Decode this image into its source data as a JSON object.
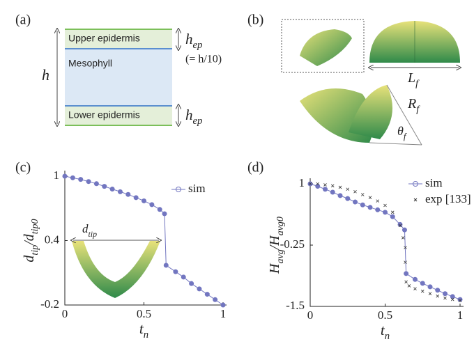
{
  "panel_a": {
    "label": "(a)",
    "upper": "Upper epidermis",
    "middle": "Mesophyll",
    "lower": "Lower epidermis",
    "h": "h",
    "h_ep_top": [
      {
        "t": "h"
      },
      {
        "t": "ep",
        "sub": true
      }
    ],
    "h_ep_bottom": [
      {
        "t": "h"
      },
      {
        "t": "ep",
        "sub": true
      }
    ],
    "note": "(= h/10)"
  },
  "panel_b": {
    "label": "(b)",
    "length": [
      {
        "t": "L"
      },
      {
        "t": "f",
        "sub": true
      }
    ],
    "radius": [
      {
        "t": "R"
      },
      {
        "t": "f",
        "sub": true
      }
    ],
    "angle": [
      {
        "t": "θ"
      },
      {
        "t": "f",
        "sub": true
      }
    ]
  },
  "chart_data": [
    {
      "type": "line",
      "panel": "(c)",
      "x_label": [
        {
          "t": "t"
        },
        {
          "t": "n",
          "sub": true
        }
      ],
      "y_label": [
        {
          "t": "d"
        },
        {
          "t": "tip",
          "sub": true
        },
        {
          "t": "/d"
        },
        {
          "t": "tip0",
          "sub": true
        }
      ],
      "inset_label": [
        {
          "t": "d"
        },
        {
          "t": "tip",
          "sub": true
        }
      ],
      "xlim": [
        0,
        1
      ],
      "xticks": [
        0,
        0.5,
        1
      ],
      "ylim": [
        -0.2,
        1
      ],
      "yticks": [
        -0.2,
        0.4,
        1
      ],
      "series": [
        {
          "name": "sim",
          "color": "#7276c0",
          "marker": "circle",
          "x": [
            0,
            0.05,
            0.1,
            0.15,
            0.2,
            0.25,
            0.3,
            0.35,
            0.4,
            0.45,
            0.5,
            0.55,
            0.6,
            0.63,
            0.64,
            0.7,
            0.75,
            0.8,
            0.85,
            0.9,
            0.95,
            1
          ],
          "values": [
            1,
            0.985,
            0.97,
            0.95,
            0.93,
            0.905,
            0.88,
            0.855,
            0.83,
            0.8,
            0.77,
            0.735,
            0.69,
            0.65,
            0.17,
            0.11,
            0.06,
            0,
            -0.05,
            -0.1,
            -0.15,
            -0.2
          ]
        }
      ]
    },
    {
      "type": "line",
      "panel": "(d)",
      "x_label": [
        {
          "t": "t"
        },
        {
          "t": "n",
          "sub": true
        }
      ],
      "y_label": [
        {
          "t": "H"
        },
        {
          "t": "avg",
          "sub": true
        },
        {
          "t": "/H"
        },
        {
          "t": "avg0",
          "sub": true
        }
      ],
      "xlim": [
        0,
        1
      ],
      "xticks": [
        0,
        0.5,
        1
      ],
      "ylim": [
        -1.5,
        1
      ],
      "yticks": [
        -1.5,
        -0.25,
        1
      ],
      "series": [
        {
          "name": "sim",
          "color": "#7276c0",
          "marker": "circle",
          "x": [
            0,
            0.05,
            0.1,
            0.15,
            0.2,
            0.25,
            0.3,
            0.35,
            0.4,
            0.45,
            0.5,
            0.55,
            0.6,
            0.63,
            0.64,
            0.7,
            0.75,
            0.8,
            0.85,
            0.9,
            0.95,
            1
          ],
          "values": [
            1,
            0.95,
            0.89,
            0.83,
            0.76,
            0.7,
            0.63,
            0.57,
            0.52,
            0.47,
            0.42,
            0.33,
            0.17,
            0.06,
            -0.83,
            -0.95,
            -1.03,
            -1.1,
            -1.17,
            -1.24,
            -1.3,
            -1.36
          ]
        },
        {
          "name": "exp [133]",
          "color": "#333333",
          "marker": "cross",
          "x": [
            0,
            0.05,
            0.1,
            0.15,
            0.2,
            0.25,
            0.3,
            0.35,
            0.4,
            0.45,
            0.5,
            0.55,
            0.6,
            0.62,
            0.635,
            0.635,
            0.64,
            0.66,
            0.7,
            0.75,
            0.8,
            0.85,
            0.9,
            0.95,
            1
          ],
          "values": [
            1,
            1,
            0.98,
            0.96,
            0.93,
            0.89,
            0.84,
            0.78,
            0.72,
            0.65,
            0.56,
            0.42,
            0.15,
            -0.1,
            -0.3,
            -0.6,
            -1,
            -1.08,
            -1.14,
            -1.19,
            -1.24,
            -1.29,
            -1.33,
            -1.36,
            -1.38
          ]
        }
      ]
    }
  ]
}
